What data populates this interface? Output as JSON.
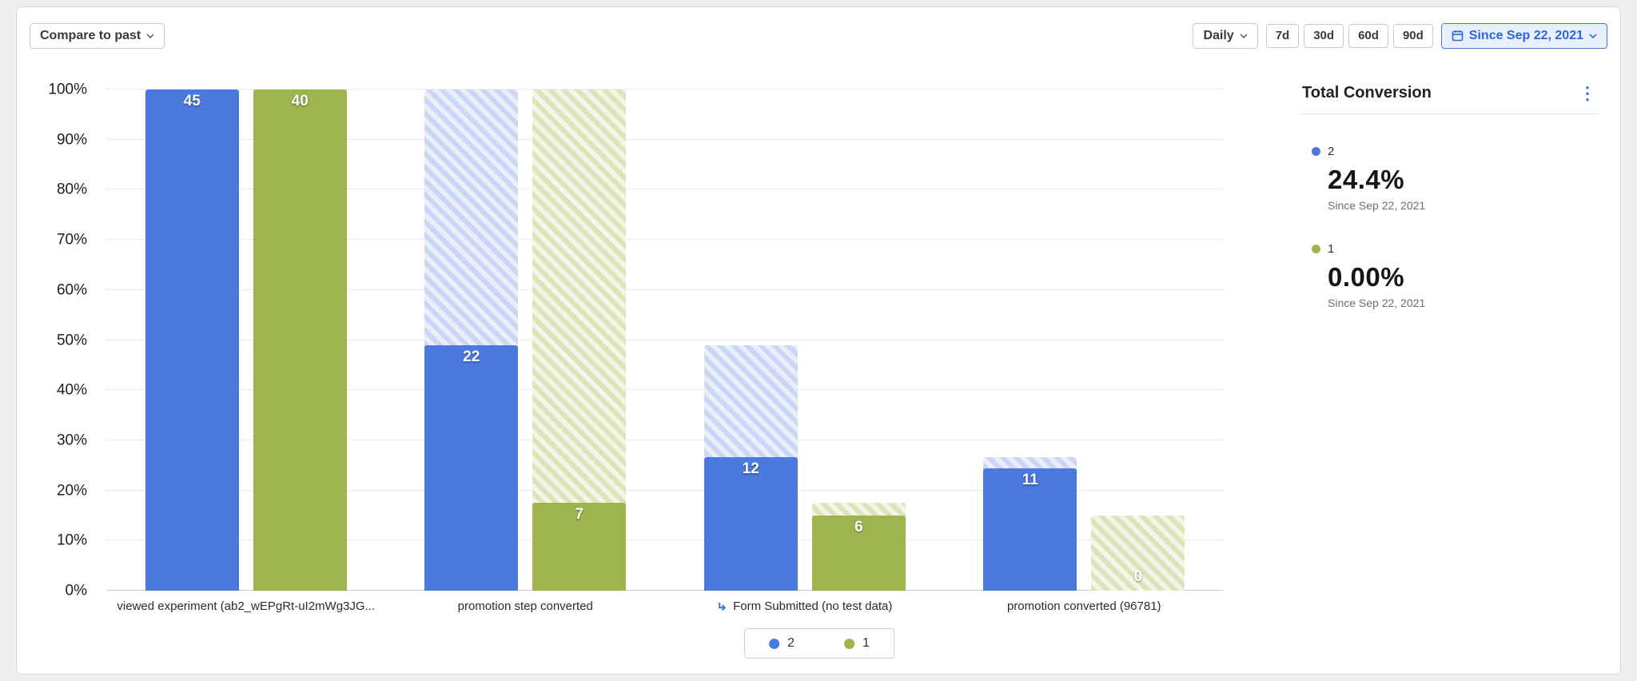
{
  "toolbar": {
    "compare_button": "Compare to past"
  },
  "time_controls": {
    "granularity": "Daily",
    "ranges": [
      "7d",
      "30d",
      "60d",
      "90d"
    ],
    "date_range": "Since Sep 22, 2021"
  },
  "chart_data": {
    "type": "bar",
    "subtype": "funnel-conversion",
    "title": "",
    "xlabel": "",
    "ylabel": "",
    "ylim": [
      0,
      100
    ],
    "grid": "dotted horizontal",
    "legend_position": "bottom center",
    "y_ticks": [
      "0%",
      "10%",
      "20%",
      "30%",
      "40%",
      "50%",
      "60%",
      "70%",
      "80%",
      "90%",
      "100%"
    ],
    "categories": [
      {
        "label": "viewed experiment (ab2_wEPgRt-uI2mWg3JG...",
        "icon": ""
      },
      {
        "label": "promotion step converted",
        "icon": ""
      },
      {
        "label": "Form Submitted (no test data)",
        "icon": "event-link-icon"
      },
      {
        "label": "promotion converted (96781)",
        "icon": ""
      }
    ],
    "series": [
      {
        "name": "2",
        "color": "#4b79de",
        "hatch_colors": [
          "#c9d7f4",
          "#e9eefb"
        ],
        "counts": [
          "45",
          "22",
          "12",
          "11"
        ],
        "conversion_pct": [
          100,
          48.9,
          26.7,
          24.4
        ]
      },
      {
        "name": "1",
        "color": "#9fb44d",
        "hatch_colors": [
          "#dde4b9",
          "#f3f5e5"
        ],
        "counts": [
          "40",
          "7",
          "6",
          "0"
        ],
        "conversion_pct": [
          100,
          17.5,
          15,
          0
        ]
      }
    ]
  },
  "summary_panel": {
    "title": "Total Conversion",
    "entries": [
      {
        "series": "2",
        "color": "#4b79de",
        "value": "24.4%",
        "caption": "Since Sep 22, 2021"
      },
      {
        "series": "1",
        "color": "#9fb44d",
        "value": "0.00%",
        "caption": "Since Sep 22, 2021"
      }
    ]
  }
}
